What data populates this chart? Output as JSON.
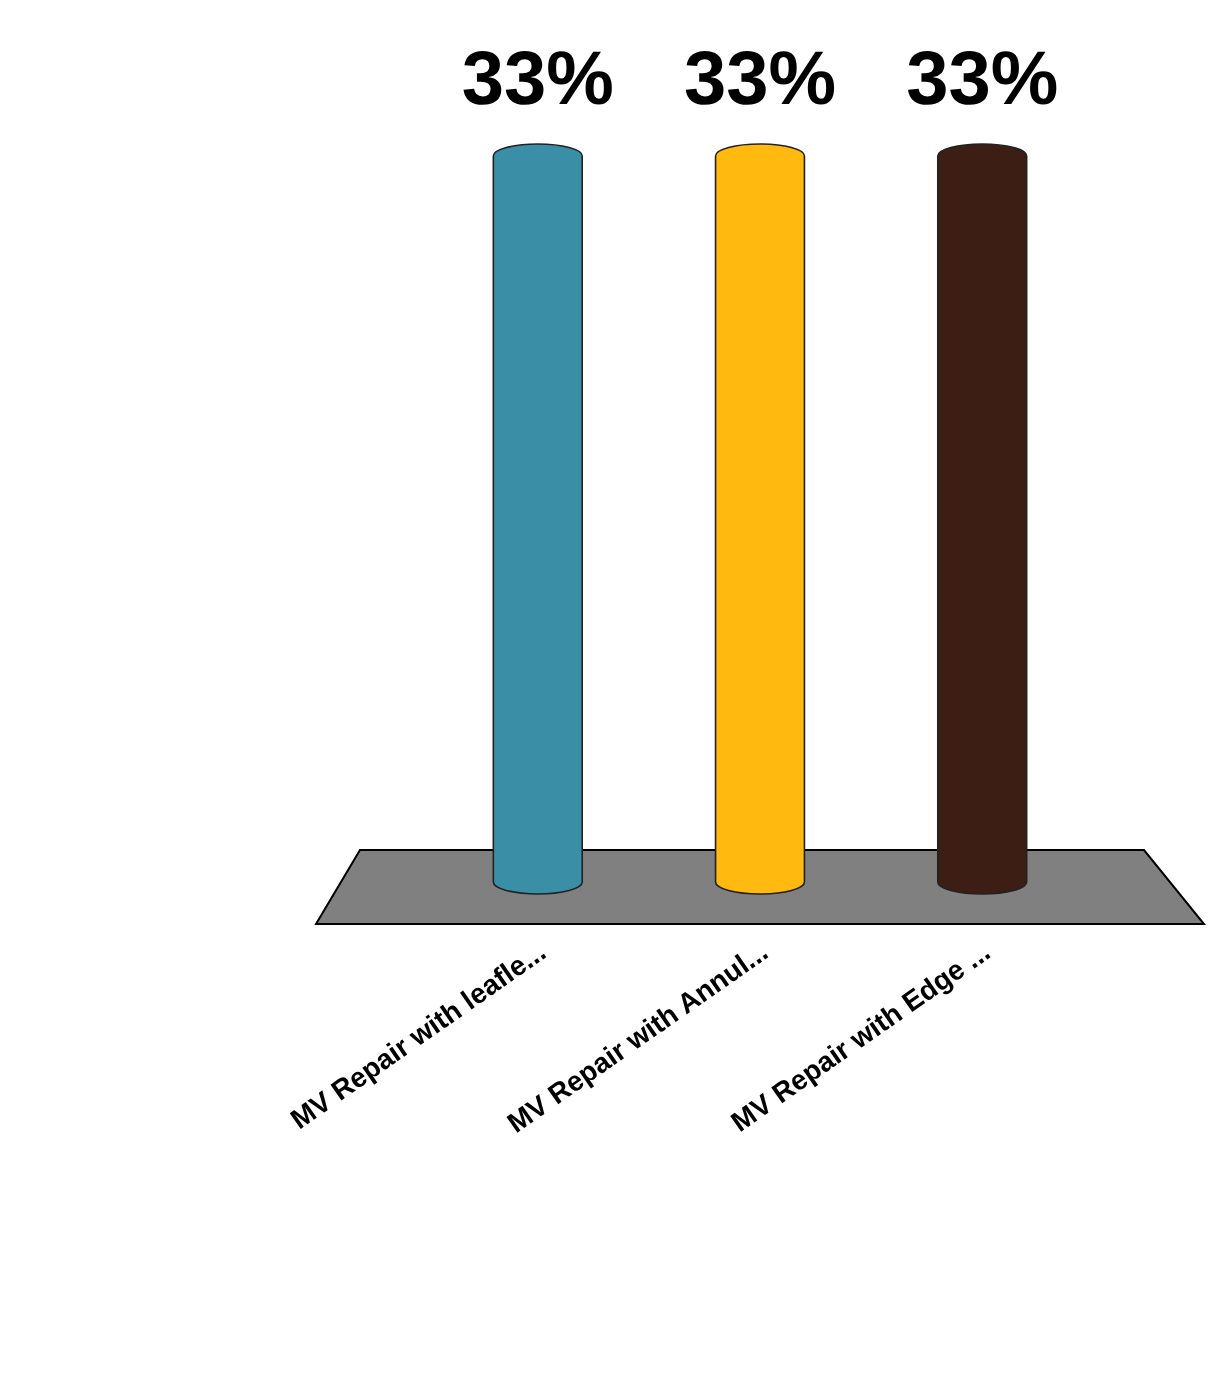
{
  "chart_data": {
    "type": "bar",
    "categories": [
      "MV Repair with leafle...",
      "MV Repair with Annul...",
      "MV Repair with Edge ..."
    ],
    "values": [
      33,
      33,
      33
    ],
    "colors": [
      "#3a8fa6",
      "#ffb90f",
      "#3d1e14"
    ],
    "value_labels": [
      "33%",
      "33%",
      "33%"
    ]
  }
}
